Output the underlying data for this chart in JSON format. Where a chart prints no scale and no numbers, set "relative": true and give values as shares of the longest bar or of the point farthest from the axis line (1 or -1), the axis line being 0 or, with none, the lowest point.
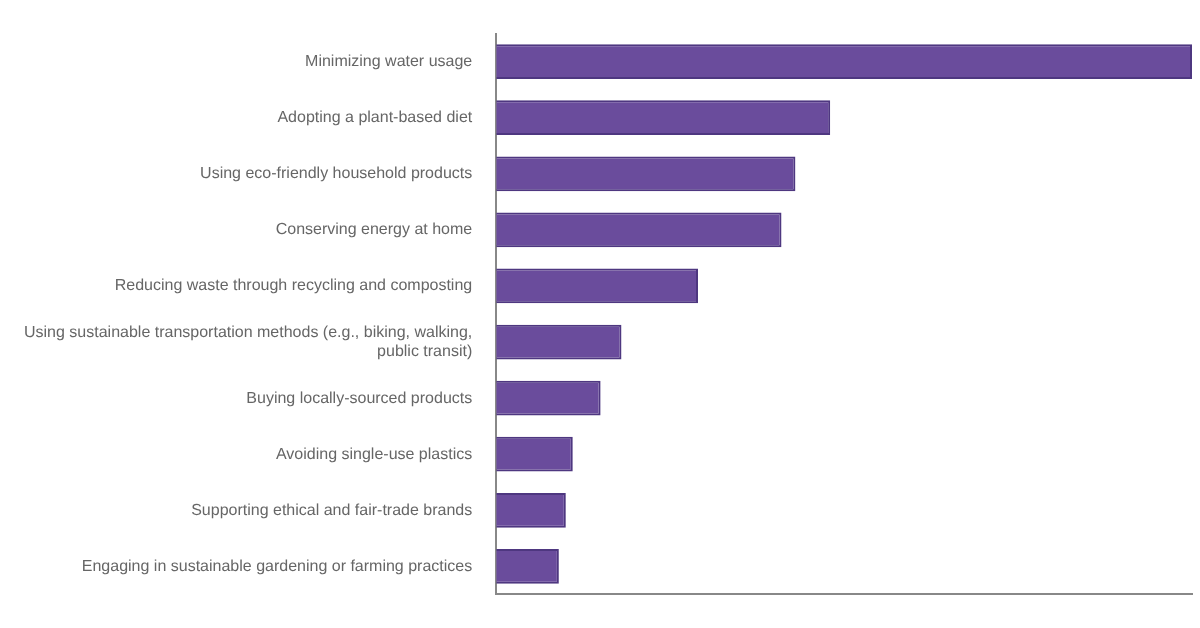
{
  "chart_data": {
    "type": "bar",
    "orientation": "horizontal",
    "relative": true,
    "color": "#6a4c9c",
    "grid": false,
    "legend": false,
    "categories": [
      "Minimizing water usage",
      "Adopting a plant-based diet",
      "Using eco-friendly household products",
      "Conserving energy at home",
      "Reducing waste through recycling and composting",
      "Using sustainable transportation methods (e.g., biking, walking, public transit)",
      "Buying locally-sourced products",
      "Avoiding single-use plastics",
      "Supporting ethical and fair-trade brands",
      "Engaging in sustainable gardening or farming practices"
    ],
    "values": [
      1,
      0.48,
      0.43,
      0.41,
      0.29,
      0.18,
      0.15,
      0.11,
      0.1,
      0.09
    ]
  }
}
